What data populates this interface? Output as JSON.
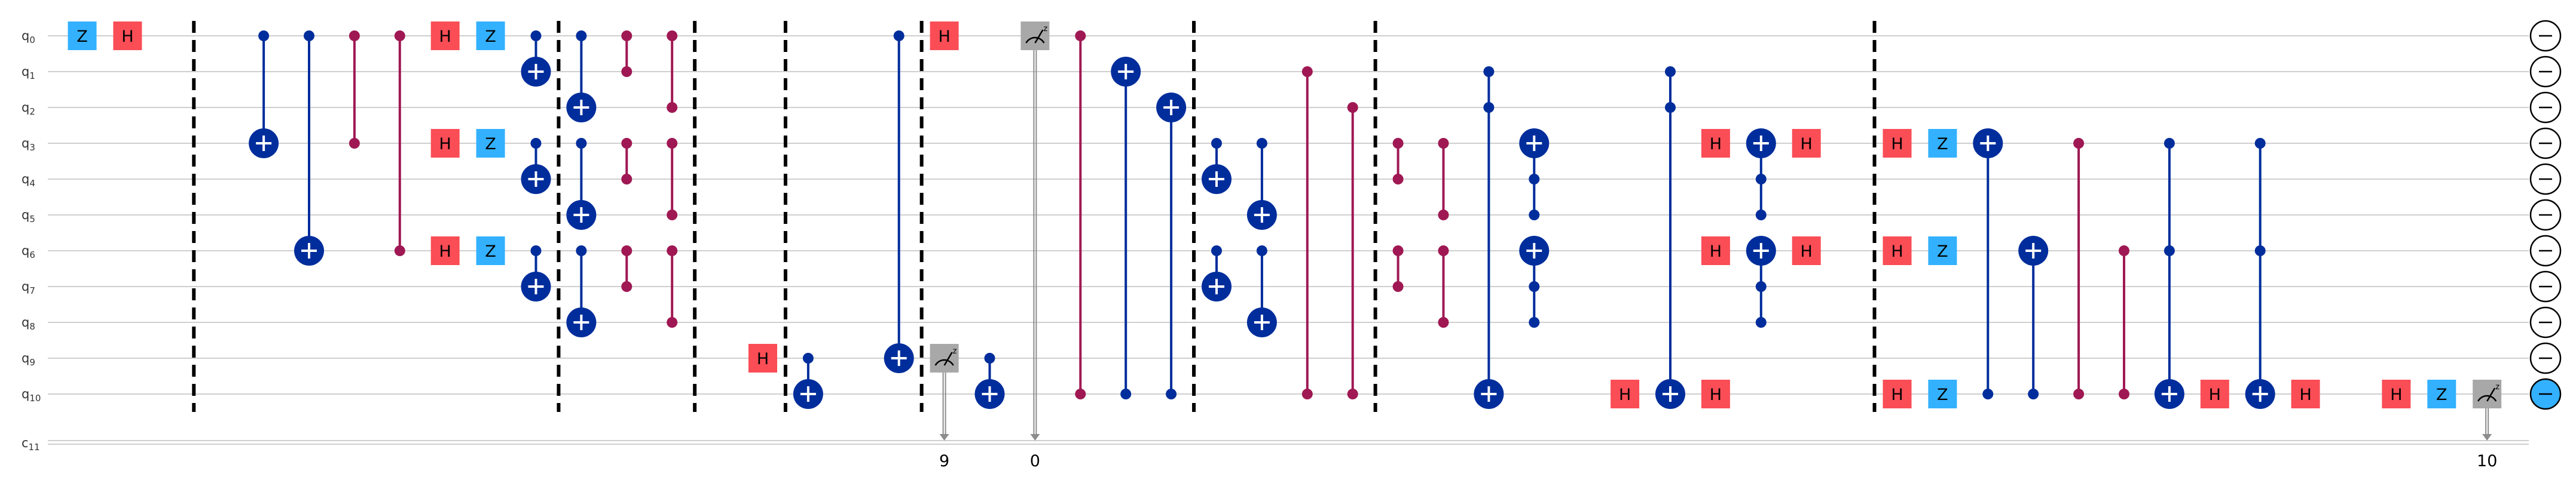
{
  "colors": {
    "wire": "#cfcfcf",
    "cwire": "#8c8c8c",
    "h": "#fa4d56",
    "z": "#33b1ff",
    "cnot": "#002d9c",
    "cz": "#9f1853",
    "meas": "#a8a8a8",
    "barrier": "#000000",
    "reset_fill": "#ffffff",
    "reset_active": "#33b1ff"
  },
  "circuit": {
    "qubits": [
      {
        "label": "q",
        "sub": "0"
      },
      {
        "label": "q",
        "sub": "1"
      },
      {
        "label": "q",
        "sub": "2"
      },
      {
        "label": "q",
        "sub": "3"
      },
      {
        "label": "q",
        "sub": "4"
      },
      {
        "label": "q",
        "sub": "5"
      },
      {
        "label": "q",
        "sub": "6"
      },
      {
        "label": "q",
        "sub": "7"
      },
      {
        "label": "q",
        "sub": "8"
      },
      {
        "label": "q",
        "sub": "9"
      },
      {
        "label": "q",
        "sub": "10"
      }
    ],
    "clbit": {
      "label": "c",
      "sub": "11"
    },
    "barriers": [
      3,
      11,
      14,
      16,
      19,
      25,
      29,
      40
    ],
    "gates": [
      {
        "type": "z",
        "label": "Z",
        "col": 0,
        "q": 0
      },
      {
        "type": "h",
        "label": "H",
        "col": 1,
        "q": 0
      },
      {
        "type": "cnot",
        "col": 4,
        "controls": [
          0
        ],
        "target": 3
      },
      {
        "type": "cnot",
        "col": 5,
        "controls": [
          0
        ],
        "target": 6
      },
      {
        "type": "cz",
        "col": 6,
        "qubits": [
          0,
          3
        ]
      },
      {
        "type": "cz",
        "col": 7,
        "qubits": [
          0,
          6
        ]
      },
      {
        "type": "h",
        "label": "H",
        "col": 8,
        "q": 0
      },
      {
        "type": "h",
        "label": "H",
        "col": 8,
        "q": 3
      },
      {
        "type": "h",
        "label": "H",
        "col": 8,
        "q": 6
      },
      {
        "type": "z",
        "label": "Z",
        "col": 9,
        "q": 0
      },
      {
        "type": "z",
        "label": "Z",
        "col": 9,
        "q": 3
      },
      {
        "type": "z",
        "label": "Z",
        "col": 9,
        "q": 6
      },
      {
        "type": "cnot",
        "col": 10,
        "controls": [
          0
        ],
        "target": 1
      },
      {
        "type": "cnot",
        "col": 10,
        "controls": [
          3
        ],
        "target": 4
      },
      {
        "type": "cnot",
        "col": 10,
        "controls": [
          6
        ],
        "target": 7
      },
      {
        "type": "cnot",
        "col": 11,
        "controls": [
          0
        ],
        "target": 2
      },
      {
        "type": "cnot",
        "col": 11,
        "controls": [
          3
        ],
        "target": 5
      },
      {
        "type": "cnot",
        "col": 11,
        "controls": [
          6
        ],
        "target": 8
      },
      {
        "type": "cz",
        "col": 12,
        "qubits": [
          0,
          1
        ]
      },
      {
        "type": "cz",
        "col": 12,
        "qubits": [
          3,
          4
        ]
      },
      {
        "type": "cz",
        "col": 12,
        "qubits": [
          6,
          7
        ]
      },
      {
        "type": "cz",
        "col": 13,
        "qubits": [
          0,
          2
        ]
      },
      {
        "type": "cz",
        "col": 13,
        "qubits": [
          3,
          5
        ]
      },
      {
        "type": "cz",
        "col": 13,
        "qubits": [
          6,
          8
        ]
      },
      {
        "type": "h",
        "label": "H",
        "col": 15,
        "q": 9
      },
      {
        "type": "cnot",
        "col": 16,
        "controls": [
          9
        ],
        "target": 10
      },
      {
        "type": "cnot",
        "col": 18,
        "controls": [
          0
        ],
        "target": 9
      },
      {
        "type": "h",
        "label": "H",
        "col": 19,
        "q": 0
      },
      {
        "type": "measure",
        "col": 19,
        "q": 9,
        "clabel": "9"
      },
      {
        "type": "cnot",
        "col": 20,
        "controls": [
          9
        ],
        "target": 10
      },
      {
        "type": "measure",
        "col": 21,
        "q": 0,
        "clabel": "0"
      },
      {
        "type": "cz",
        "col": 22,
        "qubits": [
          0,
          10
        ]
      },
      {
        "type": "cnot",
        "col": 23,
        "controls": [
          10
        ],
        "target": 1
      },
      {
        "type": "cnot",
        "col": 24,
        "controls": [
          10
        ],
        "target": 2
      },
      {
        "type": "cnot",
        "col": 25,
        "controls": [
          3
        ],
        "target": 4
      },
      {
        "type": "cnot",
        "col": 25,
        "controls": [
          6
        ],
        "target": 7
      },
      {
        "type": "cnot",
        "col": 26,
        "controls": [
          3
        ],
        "target": 5
      },
      {
        "type": "cnot",
        "col": 26,
        "controls": [
          6
        ],
        "target": 8
      },
      {
        "type": "cz",
        "col": 27,
        "qubits": [
          1,
          10
        ]
      },
      {
        "type": "cz",
        "col": 28,
        "qubits": [
          2,
          10
        ]
      },
      {
        "type": "cz",
        "col": 29,
        "qubits": [
          3,
          4
        ]
      },
      {
        "type": "cz",
        "col": 29,
        "qubits": [
          6,
          7
        ]
      },
      {
        "type": "cz",
        "col": 30,
        "qubits": [
          3,
          5
        ]
      },
      {
        "type": "cz",
        "col": 30,
        "qubits": [
          6,
          8
        ]
      },
      {
        "type": "cnot",
        "col": 31,
        "controls": [
          1,
          2
        ],
        "target": 10
      },
      {
        "type": "cnot",
        "col": 32,
        "controls": [
          4,
          5
        ],
        "target": 3
      },
      {
        "type": "cnot",
        "col": 32,
        "controls": [
          7,
          8
        ],
        "target": 6
      },
      {
        "type": "h",
        "label": "H",
        "col": 34,
        "q": 10
      },
      {
        "type": "cnot",
        "col": 35,
        "controls": [
          1,
          2
        ],
        "target": 10
      },
      {
        "type": "h",
        "label": "H",
        "col": 36,
        "q": 3
      },
      {
        "type": "h",
        "label": "H",
        "col": 36,
        "q": 6
      },
      {
        "type": "h",
        "label": "H",
        "col": 36,
        "q": 10
      },
      {
        "type": "cnot",
        "col": 37,
        "controls": [
          4,
          5
        ],
        "target": 3
      },
      {
        "type": "cnot",
        "col": 37,
        "controls": [
          7,
          8
        ],
        "target": 6
      },
      {
        "type": "h",
        "label": "H",
        "col": 38,
        "q": 3
      },
      {
        "type": "h",
        "label": "H",
        "col": 38,
        "q": 6
      },
      {
        "type": "h",
        "label": "H",
        "col": 40,
        "q": 3
      },
      {
        "type": "h",
        "label": "H",
        "col": 40,
        "q": 6
      },
      {
        "type": "h",
        "label": "H",
        "col": 40,
        "q": 10
      },
      {
        "type": "z",
        "label": "Z",
        "col": 41,
        "q": 3
      },
      {
        "type": "z",
        "label": "Z",
        "col": 41,
        "q": 6
      },
      {
        "type": "z",
        "label": "Z",
        "col": 41,
        "q": 10
      },
      {
        "type": "cnot",
        "col": 42,
        "controls": [
          10
        ],
        "target": 3
      },
      {
        "type": "cnot",
        "col": 43,
        "controls": [
          10
        ],
        "target": 6
      },
      {
        "type": "cz",
        "col": 44,
        "qubits": [
          3,
          10
        ]
      },
      {
        "type": "cz",
        "col": 45,
        "qubits": [
          6,
          10
        ]
      },
      {
        "type": "cnot",
        "col": 46,
        "controls": [
          3,
          6
        ],
        "target": 10
      },
      {
        "type": "h",
        "label": "H",
        "col": 47,
        "q": 10
      },
      {
        "type": "cnot",
        "col": 48,
        "controls": [
          3,
          6
        ],
        "target": 10
      },
      {
        "type": "h",
        "label": "H",
        "col": 49,
        "q": 10
      },
      {
        "type": "h",
        "label": "H",
        "col": 51,
        "q": 10
      },
      {
        "type": "z",
        "label": "Z",
        "col": 52,
        "q": 10
      },
      {
        "type": "measure",
        "col": 53,
        "q": 10,
        "clabel": "10"
      }
    ],
    "resets": [
      {
        "q": 0,
        "active": false
      },
      {
        "q": 1,
        "active": false
      },
      {
        "q": 2,
        "active": false
      },
      {
        "q": 3,
        "active": false
      },
      {
        "q": 4,
        "active": false
      },
      {
        "q": 5,
        "active": false
      },
      {
        "q": 6,
        "active": false
      },
      {
        "q": 7,
        "active": false
      },
      {
        "q": 8,
        "active": false
      },
      {
        "q": 9,
        "active": false
      },
      {
        "q": 10,
        "active": true
      }
    ]
  }
}
